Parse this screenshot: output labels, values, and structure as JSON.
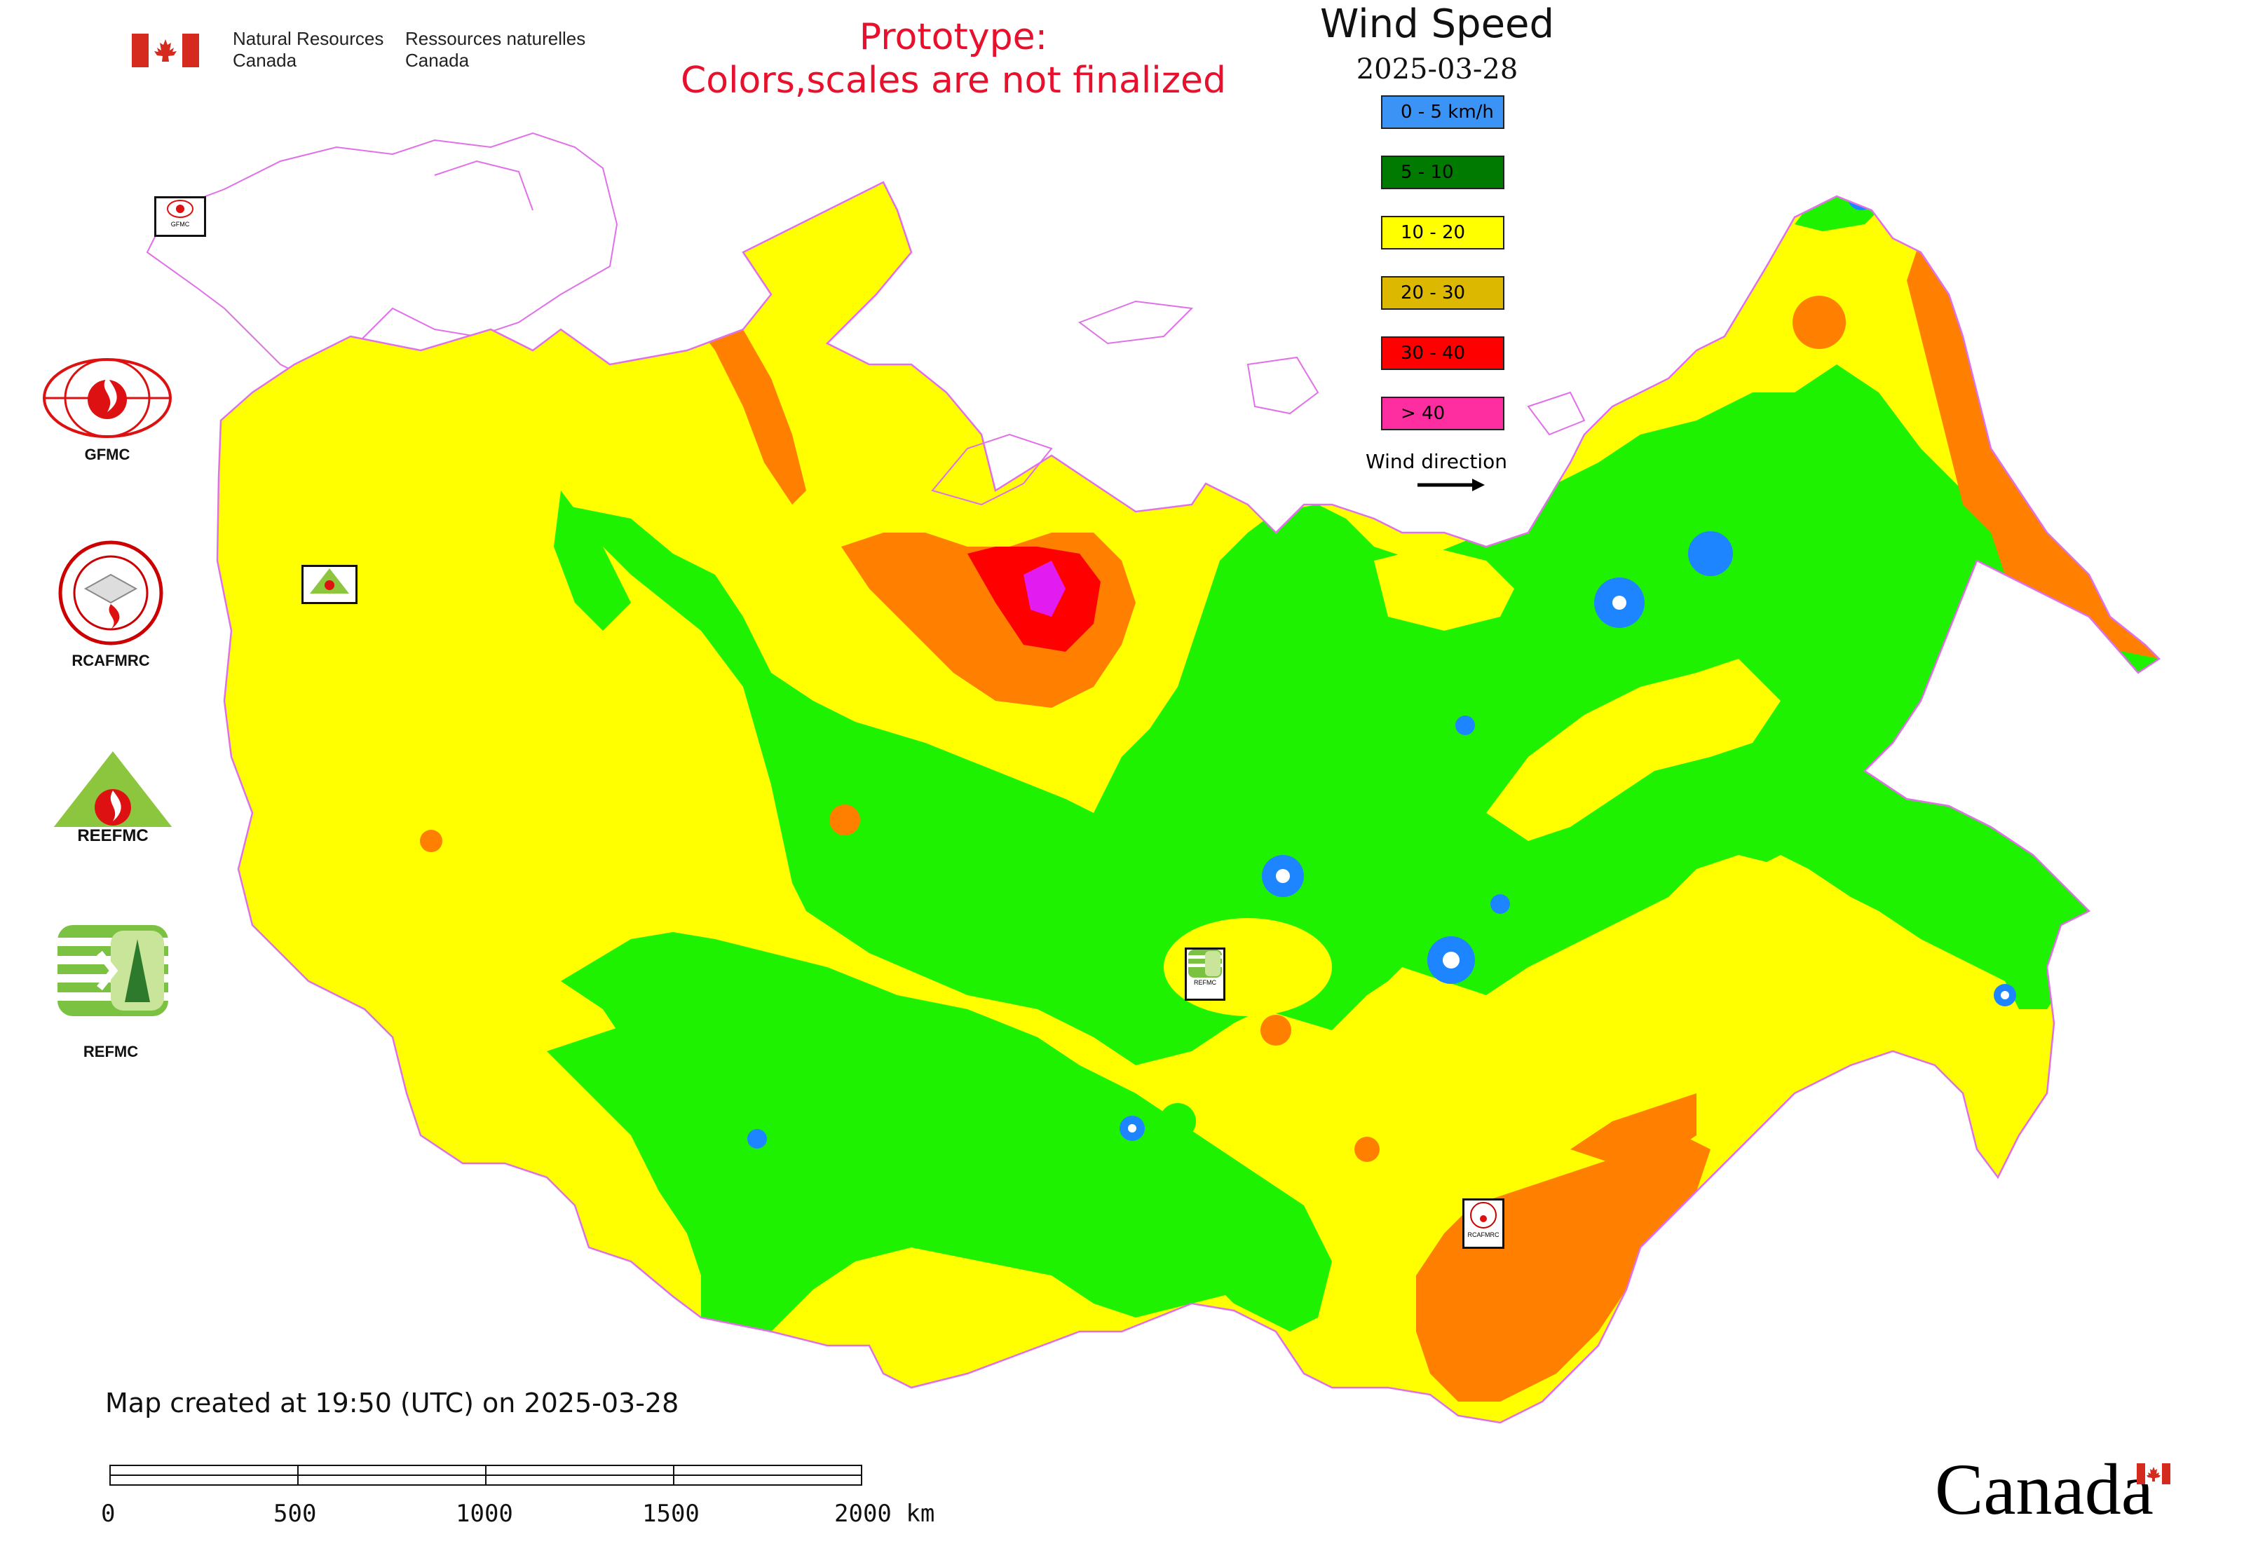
{
  "header": {
    "nrcan_en": [
      "Natural Resources",
      "Canada"
    ],
    "nrcan_fr": [
      "Ressources naturelles",
      "Canada"
    ],
    "prototype_notice": [
      "Prototype:",
      "Colors,scales are not finalized"
    ]
  },
  "map": {
    "title": "Wind Speed",
    "date": "2025-03-28",
    "legend": [
      {
        "label": "0 - 5 km/h",
        "color": "#3a93f5"
      },
      {
        "label": "5 - 10",
        "color": "#007a00"
      },
      {
        "label": "10 - 20",
        "color": "#ffff00"
      },
      {
        "label": "20 - 30",
        "color": "#dcb800"
      },
      {
        "label": "30 - 40",
        "color": "#ff0000"
      },
      {
        "label": "> 40",
        "color": "#ff2ea0"
      }
    ],
    "wind_direction_label": "Wind direction",
    "fill_colors": {
      "land_yellow": "#ffff00",
      "green": "#1ef200",
      "orange": "#ff8000",
      "red": "#ff0000",
      "blue": "#1d85ff",
      "magenta": "#e21cf0",
      "border": "#e070e8"
    }
  },
  "sidebar": {
    "logos": [
      {
        "name": "GFMC",
        "label": "GFMC"
      },
      {
        "name": "RCAFMRC",
        "label": "RCAFMRC"
      },
      {
        "name": "REEFMC",
        "label": "REEFMC"
      },
      {
        "name": "REFMC",
        "label": "REFMC"
      }
    ]
  },
  "stamps": {
    "gfmc": "GFMC",
    "reefmc": "REEFMC",
    "refmc": "REFMC",
    "rcafmrc": "RCAFMRC"
  },
  "footer": {
    "created": "Map created at 19:50 (UTC) on 2025-03-28",
    "scale_labels": [
      "0",
      "500",
      "1000",
      "1500",
      "2000 km"
    ],
    "canada_wordmark": "Canada"
  }
}
